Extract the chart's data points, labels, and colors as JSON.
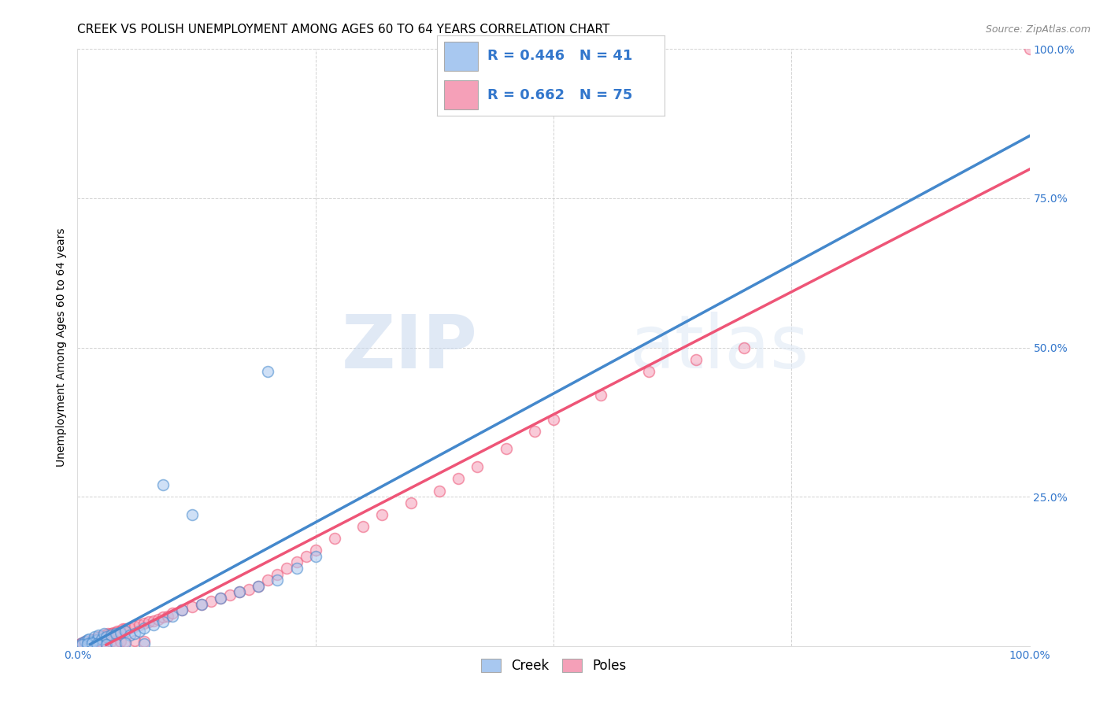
{
  "title": "CREEK VS POLISH UNEMPLOYMENT AMONG AGES 60 TO 64 YEARS CORRELATION CHART",
  "source": "Source: ZipAtlas.com",
  "ylabel": "Unemployment Among Ages 60 to 64 years",
  "xlim": [
    0.0,
    1.0
  ],
  "ylim": [
    0.0,
    1.0
  ],
  "creek_color": "#A8C8F0",
  "poles_color": "#F5A0B8",
  "creek_line_color": "#4488CC",
  "poles_line_color": "#EE5577",
  "creek_R": 0.446,
  "creek_N": 41,
  "poles_R": 0.662,
  "poles_N": 75,
  "background_color": "#ffffff",
  "grid_color": "#cccccc",
  "creek_scatter_x": [
    0.005,
    0.008,
    0.01,
    0.012,
    0.015,
    0.018,
    0.02,
    0.022,
    0.025,
    0.028,
    0.03,
    0.035,
    0.04,
    0.045,
    0.05,
    0.055,
    0.06,
    0.065,
    0.07,
    0.08,
    0.09,
    0.1,
    0.11,
    0.13,
    0.15,
    0.17,
    0.19,
    0.21,
    0.23,
    0.25,
    0.005,
    0.01,
    0.015,
    0.02,
    0.03,
    0.04,
    0.05,
    0.07,
    0.09,
    0.12,
    0.2
  ],
  "creek_scatter_y": [
    0.005,
    0.008,
    0.01,
    0.012,
    0.008,
    0.015,
    0.01,
    0.018,
    0.012,
    0.02,
    0.015,
    0.018,
    0.02,
    0.022,
    0.025,
    0.018,
    0.02,
    0.025,
    0.03,
    0.035,
    0.04,
    0.05,
    0.06,
    0.07,
    0.08,
    0.09,
    0.1,
    0.11,
    0.13,
    0.15,
    0.002,
    0.003,
    0.005,
    0.003,
    0.002,
    0.003,
    0.005,
    0.003,
    0.27,
    0.22,
    0.46
  ],
  "poles_scatter_x": [
    0.003,
    0.005,
    0.007,
    0.008,
    0.01,
    0.012,
    0.015,
    0.018,
    0.02,
    0.022,
    0.025,
    0.028,
    0.03,
    0.032,
    0.035,
    0.038,
    0.04,
    0.042,
    0.045,
    0.048,
    0.05,
    0.055,
    0.06,
    0.065,
    0.07,
    0.075,
    0.08,
    0.085,
    0.09,
    0.095,
    0.1,
    0.11,
    0.12,
    0.13,
    0.14,
    0.15,
    0.16,
    0.17,
    0.18,
    0.19,
    0.2,
    0.21,
    0.22,
    0.23,
    0.24,
    0.25,
    0.27,
    0.3,
    0.32,
    0.35,
    0.38,
    0.4,
    0.42,
    0.45,
    0.48,
    0.5,
    0.55,
    0.6,
    0.65,
    0.7,
    0.003,
    0.005,
    0.007,
    0.01,
    0.015,
    0.02,
    0.025,
    0.03,
    0.035,
    0.04,
    0.045,
    0.05,
    0.06,
    0.07,
    1.0
  ],
  "poles_scatter_y": [
    0.003,
    0.005,
    0.006,
    0.007,
    0.008,
    0.008,
    0.01,
    0.012,
    0.012,
    0.015,
    0.015,
    0.018,
    0.018,
    0.02,
    0.02,
    0.022,
    0.022,
    0.025,
    0.025,
    0.028,
    0.028,
    0.03,
    0.032,
    0.035,
    0.038,
    0.04,
    0.042,
    0.045,
    0.048,
    0.05,
    0.055,
    0.06,
    0.065,
    0.07,
    0.075,
    0.08,
    0.085,
    0.09,
    0.095,
    0.1,
    0.11,
    0.12,
    0.13,
    0.14,
    0.15,
    0.16,
    0.18,
    0.2,
    0.22,
    0.24,
    0.26,
    0.28,
    0.3,
    0.33,
    0.36,
    0.38,
    0.42,
    0.46,
    0.48,
    0.5,
    0.002,
    0.003,
    0.004,
    0.003,
    0.005,
    0.004,
    0.006,
    0.005,
    0.007,
    0.006,
    0.008,
    0.007,
    0.009,
    0.008,
    1.0
  ],
  "title_fontsize": 11,
  "axis_label_fontsize": 10,
  "tick_fontsize": 10,
  "legend_fontsize": 13,
  "source_fontsize": 9,
  "scatter_size": 100,
  "scatter_alpha": 0.55,
  "scatter_linewidth": 1.2
}
